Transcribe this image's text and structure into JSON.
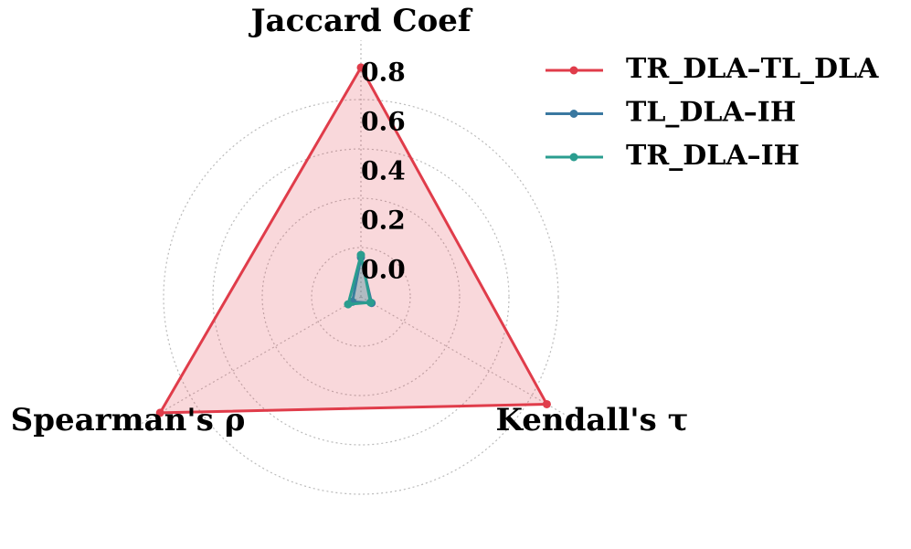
{
  "chart_data": {
    "type": "radar",
    "categories": [
      "Jaccard Coef",
      "Kendall's τ",
      "Spearman's ρ"
    ],
    "series": [
      {
        "name": "TR_DLA–TL_DLA",
        "color": "#e03c4a",
        "values": [
          0.93,
          0.87,
          0.94
        ]
      },
      {
        "name": "TL_DLA–IH",
        "color": "#3a78a0",
        "values": [
          0.16,
          0.05,
          0.04
        ]
      },
      {
        "name": "TR_DLA–IH",
        "color": "#2a9d8f",
        "values": [
          0.17,
          0.045,
          0.06
        ]
      }
    ],
    "ylim": [
      0,
      1.0
    ],
    "yticks": [
      0.0,
      0.2,
      0.4,
      0.6,
      0.8
    ],
    "grid": true,
    "legend": "upper right"
  }
}
